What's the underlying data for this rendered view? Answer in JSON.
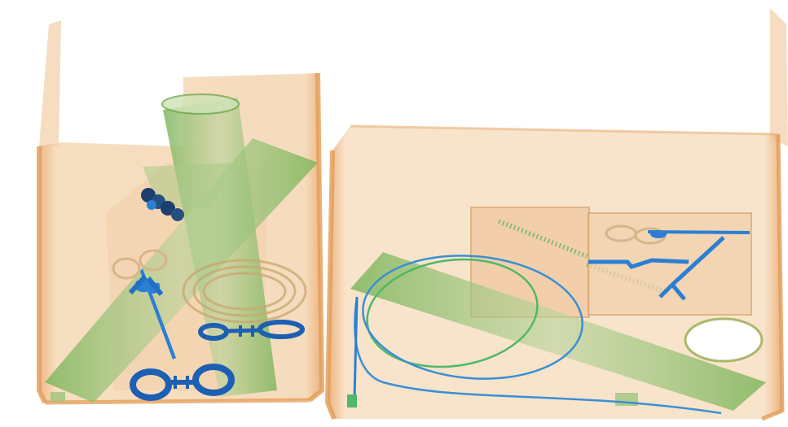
{
  "image": {
    "kind": "x-ray baggage scan",
    "palette": {
      "background": "#ffffff",
      "organic_orange": "#e8a96a",
      "organic_light": "#f4d3ac",
      "mixed_green": "#8cbf6a",
      "mixed_green_dark": "#5f9a45",
      "metal_blue": "#2a7fd4",
      "metal_dark": "#1d3f6e"
    }
  },
  "objects": [
    {
      "name": "left-container",
      "material": "organic"
    },
    {
      "name": "right-container",
      "material": "organic"
    },
    {
      "name": "left-tube-a",
      "material": "mixed"
    },
    {
      "name": "left-tube-b",
      "material": "mixed"
    },
    {
      "name": "left-tube-c",
      "material": "mixed"
    },
    {
      "name": "left-coiled-rope",
      "material": "mixed"
    },
    {
      "name": "left-scissors",
      "material": "metal"
    },
    {
      "name": "left-handcuffs-large",
      "material": "metal"
    },
    {
      "name": "left-handcuffs-small",
      "material": "metal"
    },
    {
      "name": "left-dark-cluster",
      "material": "metal"
    },
    {
      "name": "right-notebook",
      "material": "organic"
    },
    {
      "name": "right-tray",
      "material": "organic"
    },
    {
      "name": "right-long-tube",
      "material": "mixed"
    },
    {
      "name": "right-cable-loop",
      "material": "mixed"
    },
    {
      "name": "right-compasses",
      "material": "metal"
    },
    {
      "name": "right-ring",
      "material": "mixed"
    }
  ]
}
